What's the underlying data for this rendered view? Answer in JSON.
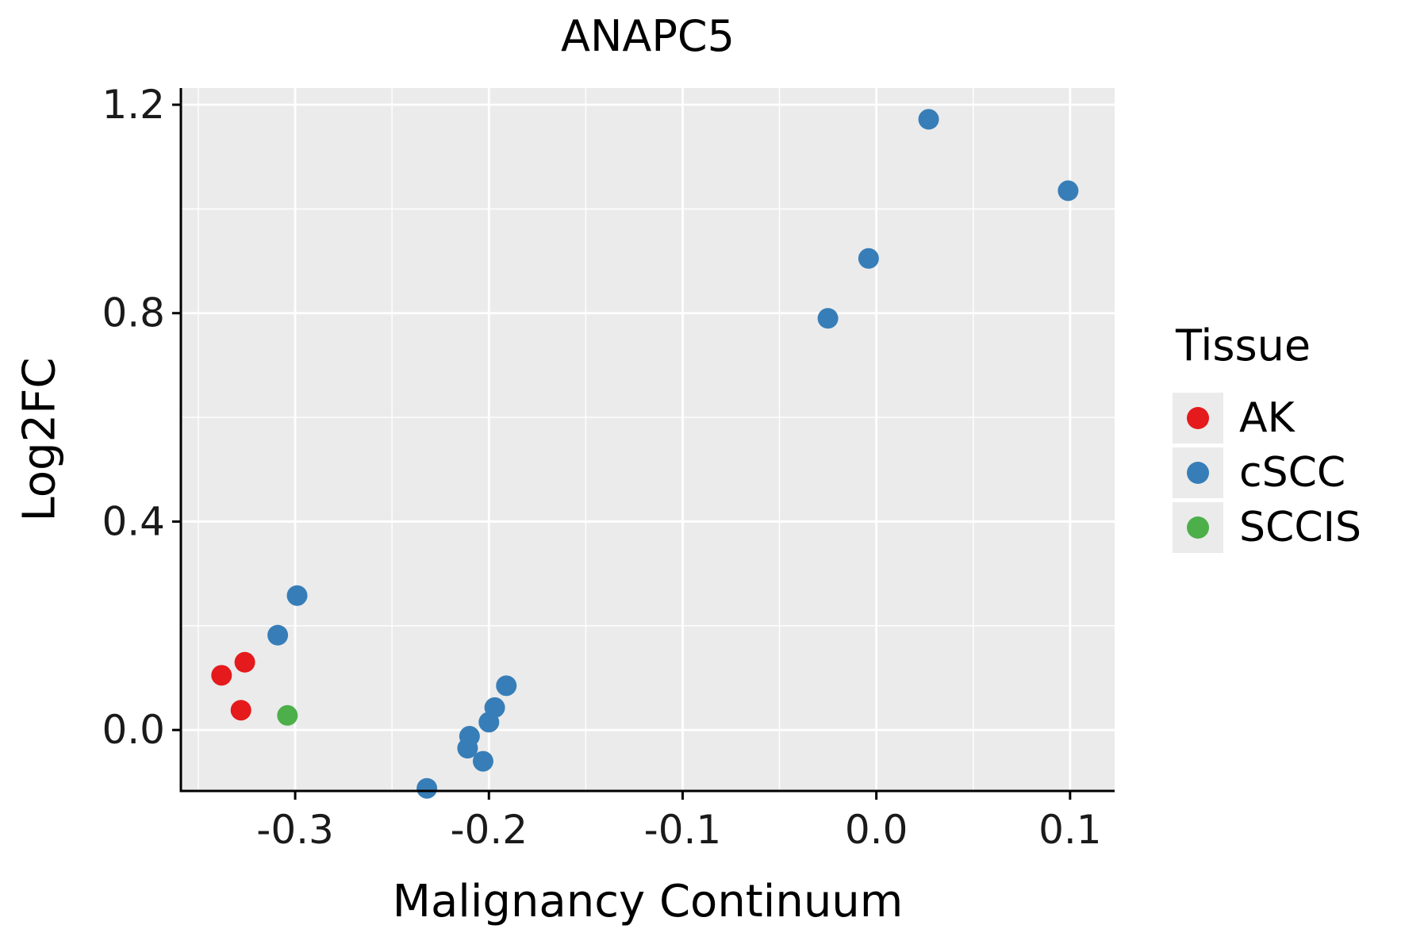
{
  "chart_data": {
    "type": "scatter",
    "title": "ANAPC5",
    "xlabel": "Malignancy Continuum",
    "ylabel": "Log2FC",
    "xlim": [
      -0.359,
      0.123
    ],
    "ylim": [
      -0.117,
      1.232
    ],
    "xticks": {
      "values": [
        -0.3,
        -0.2,
        -0.1,
        0.0,
        0.1
      ],
      "labels": [
        "-0.3",
        "-0.2",
        "-0.1",
        "0.0",
        "0.1"
      ]
    },
    "yticks": {
      "values": [
        0.0,
        0.4,
        0.8,
        1.2
      ],
      "labels": [
        "0.0",
        "0.4",
        "0.8",
        "1.2"
      ]
    },
    "x_minor": [
      -0.35,
      -0.25,
      -0.15,
      -0.05,
      0.05
    ],
    "y_minor": [
      0.2,
      0.6,
      1.0
    ],
    "grid": true,
    "panel_bg": "#EBEBEB",
    "grid_color": "#FFFFFF",
    "axis_color": "#000000",
    "tick_label_color": "#1a1a1a",
    "legend": {
      "title": "Tissue",
      "position": "right"
    },
    "series": [
      {
        "name": "AK",
        "color": "#E41A1C",
        "points": [
          [
            -0.338,
            0.105
          ],
          [
            -0.326,
            0.13
          ],
          [
            -0.328,
            0.038
          ]
        ]
      },
      {
        "name": "cSCC",
        "color": "#377EB8",
        "points": [
          [
            -0.299,
            0.258
          ],
          [
            -0.309,
            0.182
          ],
          [
            -0.232,
            -0.112
          ],
          [
            -0.211,
            -0.035
          ],
          [
            -0.21,
            -0.012
          ],
          [
            -0.203,
            -0.06
          ],
          [
            -0.2,
            0.015
          ],
          [
            -0.197,
            0.043
          ],
          [
            -0.191,
            0.085
          ],
          [
            -0.025,
            0.79
          ],
          [
            -0.004,
            0.905
          ],
          [
            0.027,
            1.172
          ],
          [
            0.099,
            1.035
          ]
        ]
      },
      {
        "name": "SCCIS",
        "color": "#4DAF4A",
        "points": [
          [
            -0.304,
            0.028
          ]
        ]
      }
    ]
  }
}
